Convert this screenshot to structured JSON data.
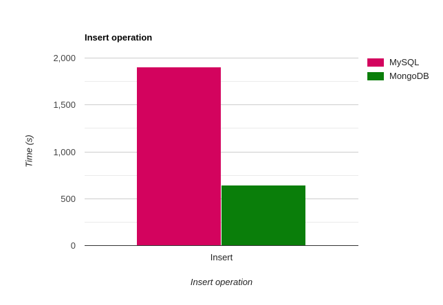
{
  "window": {
    "background": "#ffffff"
  },
  "chart_data": {
    "type": "bar",
    "title": "Insert operation",
    "xlabel": "Insert operation",
    "ylabel": "Time (s)",
    "categories": [
      "Insert"
    ],
    "series": [
      {
        "name": "MySQL",
        "color": "#d3035e",
        "values": [
          1900
        ]
      },
      {
        "name": "MongoDB",
        "color": "#0a7e0a",
        "values": [
          635
        ]
      }
    ],
    "ylim": [
      0,
      2000
    ],
    "yticks": [
      {
        "value": 0,
        "label": "0"
      },
      {
        "value": 500,
        "label": "500"
      },
      {
        "value": 1000,
        "label": "1,000"
      },
      {
        "value": 1500,
        "label": "1,500"
      },
      {
        "value": 2000,
        "label": "2,000"
      }
    ],
    "minor_ticks": [
      250,
      750,
      1250,
      1750
    ],
    "grid": true,
    "legend_position": "top-right",
    "colors": {
      "major_gridline": "#cccccc",
      "minor_gridline": "#ebebeb",
      "axis_line": "#333333",
      "tick_text": "#444444",
      "title_text": "#000000"
    }
  }
}
